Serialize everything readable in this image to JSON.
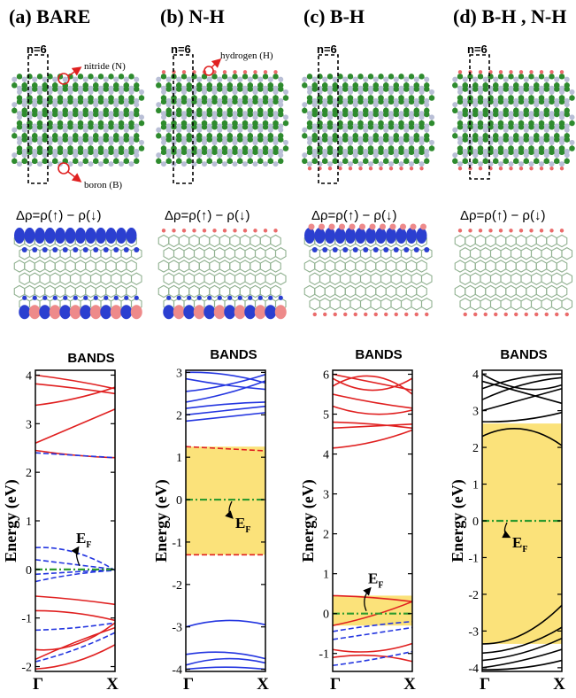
{
  "panels": [
    {
      "title": "(a) BARE",
      "n_label": "n=6"
    },
    {
      "title": "(b) N-H",
      "n_label": "n=6"
    },
    {
      "title": "(c) B-H",
      "n_label": "n=6"
    },
    {
      "title": "(d) B-H , N-H",
      "n_label": "n=6"
    }
  ],
  "annotations": {
    "nitride": "nitride (N)",
    "boron": "boron (B)",
    "hydrogen": "hydrogen (H)"
  },
  "spin_density_formula": "Δρ=ρ(↑) − ρ(↓)",
  "bands_title": "BANDS",
  "ylabel": "Energy (eV)",
  "fermi_label": "E",
  "fermi_sub": "F",
  "colors": {
    "boron": "#2e8b2e",
    "nitrogen": "#b9bfd6",
    "hydrogen": "#ea6b6b",
    "spin_up": "#e02020",
    "spin_down": "#2436e0",
    "gap": "#fbe27a",
    "fermi": "#2e9a2e",
    "density_pos": "#2b3fd0",
    "density_neg": "#ee8a8a"
  },
  "chart_data": [
    {
      "type": "line",
      "panel": "(a) BARE",
      "title": "BANDS",
      "ylabel": "Energy (eV)",
      "xticks": [
        "Γ",
        "X"
      ],
      "ylim": [
        -2.1,
        4.1
      ],
      "yticks": [
        -2,
        -1,
        0,
        1,
        2,
        3,
        4
      ],
      "fermi_level": 0,
      "gap_region": null,
      "series": [
        {
          "spin": "up",
          "style": "solid",
          "color": "red",
          "x": [
            0,
            0.5,
            1
          ],
          "y": [
            4.0,
            3.88,
            3.72
          ]
        },
        {
          "spin": "up",
          "style": "solid",
          "color": "red",
          "x": [
            0,
            0.5,
            1
          ],
          "y": [
            3.82,
            3.73,
            3.62
          ]
        },
        {
          "spin": "up",
          "style": "solid",
          "color": "red",
          "x": [
            0,
            0.5,
            1
          ],
          "y": [
            3.38,
            3.52,
            3.75
          ]
        },
        {
          "spin": "up",
          "style": "solid",
          "color": "red",
          "x": [
            0,
            0.5,
            1
          ],
          "y": [
            2.6,
            2.95,
            3.3
          ]
        },
        {
          "spin": "up",
          "style": "solid",
          "color": "red",
          "x": [
            0,
            0.5,
            1
          ],
          "y": [
            2.45,
            2.35,
            2.3
          ]
        },
        {
          "spin": "down",
          "style": "dashed",
          "color": "blue",
          "x": [
            0,
            0.5,
            1
          ],
          "y": [
            2.4,
            2.35,
            2.3
          ]
        },
        {
          "spin": "down",
          "style": "dashed",
          "color": "blue",
          "x": [
            0,
            0.5,
            1
          ],
          "y": [
            0.45,
            0.35,
            -0.02
          ]
        },
        {
          "spin": "down",
          "style": "dashed",
          "color": "blue",
          "x": [
            0,
            0.5,
            1
          ],
          "y": [
            0.2,
            0.1,
            0.0
          ]
        },
        {
          "spin": "down",
          "style": "dashed",
          "color": "blue",
          "x": [
            0,
            0.5,
            1
          ],
          "y": [
            -0.1,
            -0.05,
            0.0
          ]
        },
        {
          "spin": "down",
          "style": "dashed",
          "color": "blue",
          "x": [
            0,
            0.5,
            1
          ],
          "y": [
            -0.25,
            -0.1,
            -0.02
          ]
        },
        {
          "spin": "up",
          "style": "solid",
          "color": "red",
          "x": [
            0,
            0.5,
            1
          ],
          "y": [
            -0.55,
            -0.62,
            -0.72
          ]
        },
        {
          "spin": "up",
          "style": "solid",
          "color": "red",
          "x": [
            0,
            0.5,
            1
          ],
          "y": [
            -0.85,
            -0.9,
            -1.05
          ]
        },
        {
          "spin": "down",
          "style": "dashed",
          "color": "blue",
          "x": [
            0,
            0.5,
            1
          ],
          "y": [
            -1.25,
            -1.2,
            -1.1
          ]
        },
        {
          "spin": "up",
          "style": "solid",
          "color": "red",
          "x": [
            0,
            0.5,
            1
          ],
          "y": [
            -1.65,
            -1.55,
            -1.1
          ]
        },
        {
          "spin": "up",
          "style": "solid",
          "color": "red",
          "x": [
            0,
            0.5,
            1
          ],
          "y": [
            -1.85,
            -1.5,
            -1.2
          ]
        },
        {
          "spin": "down",
          "style": "dashed",
          "color": "blue",
          "x": [
            0,
            0.5,
            1
          ],
          "y": [
            -1.9,
            -1.65,
            -1.3
          ]
        },
        {
          "spin": "up",
          "style": "solid",
          "color": "red",
          "x": [
            0,
            0.5,
            1
          ],
          "y": [
            -2.05,
            -1.9,
            -1.55
          ]
        }
      ]
    },
    {
      "type": "line",
      "panel": "(b) N-H",
      "title": "BANDS",
      "ylabel": "Energy (eV)",
      "xticks": [
        "Γ",
        "X"
      ],
      "ylim": [
        -4.05,
        3.05
      ],
      "yticks": [
        -4,
        -3,
        -2,
        -1,
        0,
        1,
        2,
        3
      ],
      "fermi_level": 0,
      "gap_region": [
        -1.3,
        1.25
      ],
      "series": [
        {
          "spin": "both",
          "style": "solid",
          "color": "blue",
          "x": [
            0,
            0.5,
            1
          ],
          "y": [
            3.0,
            2.95,
            2.75
          ]
        },
        {
          "spin": "both",
          "style": "solid",
          "color": "blue",
          "x": [
            0,
            0.5,
            1
          ],
          "y": [
            2.85,
            2.7,
            2.6
          ]
        },
        {
          "spin": "both",
          "style": "solid",
          "color": "blue",
          "x": [
            0,
            0.5,
            1
          ],
          "y": [
            2.55,
            2.7,
            2.95
          ]
        },
        {
          "spin": "both",
          "style": "solid",
          "color": "blue",
          "x": [
            0,
            0.5,
            1
          ],
          "y": [
            2.3,
            2.5,
            2.8
          ]
        },
        {
          "spin": "both",
          "style": "solid",
          "color": "blue",
          "x": [
            0,
            0.5,
            1
          ],
          "y": [
            2.15,
            2.25,
            2.3
          ]
        },
        {
          "spin": "both",
          "style": "solid",
          "color": "blue",
          "x": [
            0,
            0.5,
            1
          ],
          "y": [
            2.0,
            2.1,
            2.2
          ]
        },
        {
          "spin": "both",
          "style": "solid",
          "color": "blue",
          "x": [
            0,
            0.5,
            1
          ],
          "y": [
            1.85,
            1.95,
            2.05
          ]
        },
        {
          "spin": "both",
          "style": "dashed",
          "color": "red",
          "x": [
            0,
            0.5,
            1
          ],
          "y": [
            1.25,
            1.2,
            1.15
          ]
        },
        {
          "spin": "both",
          "style": "dashed",
          "color": "red",
          "x": [
            0,
            0.5,
            1
          ],
          "y": [
            -1.3,
            -1.3,
            -1.3
          ]
        },
        {
          "spin": "both",
          "style": "solid",
          "color": "blue",
          "x": [
            0,
            0.5,
            1
          ],
          "y": [
            -3.0,
            -2.85,
            -2.95
          ]
        },
        {
          "spin": "both",
          "style": "solid",
          "color": "blue",
          "x": [
            0,
            0.5,
            1
          ],
          "y": [
            -3.65,
            -3.6,
            -3.75
          ]
        },
        {
          "spin": "both",
          "style": "solid",
          "color": "blue",
          "x": [
            0,
            0.5,
            1
          ],
          "y": [
            -3.9,
            -3.75,
            -3.85
          ]
        },
        {
          "spin": "both",
          "style": "solid",
          "color": "blue",
          "x": [
            0,
            0.5,
            1
          ],
          "y": [
            -4.0,
            -3.95,
            -4.0
          ]
        }
      ]
    },
    {
      "type": "line",
      "panel": "(c) B-H",
      "title": "BANDS",
      "ylabel": "Energy (eV)",
      "xticks": [
        "Γ",
        "X"
      ],
      "ylim": [
        -1.45,
        6.1
      ],
      "yticks": [
        -1,
        0,
        1,
        2,
        3,
        4,
        5,
        6
      ],
      "fermi_level": 0,
      "gap_region": [
        -0.3,
        0.45
      ],
      "series": [
        {
          "spin": "up",
          "style": "solid",
          "color": "red",
          "x": [
            0,
            0.5,
            1
          ],
          "y": [
            6.0,
            5.8,
            5.6
          ]
        },
        {
          "spin": "up",
          "style": "solid",
          "color": "red",
          "x": [
            0,
            0.5,
            1
          ],
          "y": [
            5.9,
            5.6,
            5.9
          ]
        },
        {
          "spin": "up",
          "style": "solid",
          "color": "red",
          "x": [
            0,
            0.5,
            1
          ],
          "y": [
            5.7,
            5.95,
            5.5
          ]
        },
        {
          "spin": "up",
          "style": "solid",
          "color": "red",
          "x": [
            0,
            0.5,
            1
          ],
          "y": [
            5.5,
            5.3,
            5.15
          ]
        },
        {
          "spin": "up",
          "style": "solid",
          "color": "red",
          "x": [
            0,
            0.5,
            1
          ],
          "y": [
            5.2,
            5.0,
            5.1
          ]
        },
        {
          "spin": "up",
          "style": "solid",
          "color": "red",
          "x": [
            0,
            0.5,
            1
          ],
          "y": [
            4.8,
            4.75,
            4.65
          ]
        },
        {
          "spin": "up",
          "style": "solid",
          "color": "red",
          "x": [
            0,
            0.5,
            1
          ],
          "y": [
            4.65,
            4.7,
            4.75
          ]
        },
        {
          "spin": "up",
          "style": "solid",
          "color": "red",
          "x": [
            0,
            0.5,
            1
          ],
          "y": [
            4.15,
            4.3,
            4.6
          ]
        },
        {
          "spin": "up",
          "style": "solid",
          "color": "red",
          "x": [
            0,
            0.5,
            1
          ],
          "y": [
            0.45,
            0.4,
            0.3
          ]
        },
        {
          "spin": "up",
          "style": "solid",
          "color": "red",
          "x": [
            0,
            0.5,
            1
          ],
          "y": [
            -0.3,
            -0.05,
            0.3
          ]
        },
        {
          "spin": "down",
          "style": "dashed",
          "color": "blue",
          "x": [
            0,
            0.5,
            1
          ],
          "y": [
            -0.45,
            -0.3,
            -0.2
          ]
        },
        {
          "spin": "down",
          "style": "dashed",
          "color": "blue",
          "x": [
            0,
            0.5,
            1
          ],
          "y": [
            -0.65,
            -0.5,
            -0.35
          ]
        },
        {
          "spin": "up",
          "style": "solid",
          "color": "red",
          "x": [
            0,
            0.5,
            1
          ],
          "y": [
            -0.9,
            -0.95,
            -0.75
          ]
        },
        {
          "spin": "up",
          "style": "solid",
          "color": "red",
          "x": [
            0,
            0.5,
            1
          ],
          "y": [
            -1.1,
            -1.05,
            -1.2
          ]
        },
        {
          "spin": "down",
          "style": "dashed",
          "color": "blue",
          "x": [
            0,
            0.5,
            1
          ],
          "y": [
            -1.3,
            -1.15,
            -0.95
          ]
        }
      ]
    },
    {
      "type": "line",
      "panel": "(d) B-H , N-H",
      "title": "BANDS",
      "ylabel": "Energy (eV)",
      "xticks": [
        "Γ",
        "X"
      ],
      "ylim": [
        -4.1,
        4.1
      ],
      "yticks": [
        -4,
        -3,
        -2,
        -1,
        0,
        1,
        2,
        3,
        4
      ],
      "fermi_level": 0,
      "gap_region": [
        -3.35,
        2.65
      ],
      "series": [
        {
          "spin": "both",
          "style": "solid",
          "color": "black",
          "x": [
            0,
            0.5,
            1
          ],
          "y": [
            4.0,
            3.6,
            3.7
          ]
        },
        {
          "spin": "both",
          "style": "solid",
          "color": "black",
          "x": [
            0,
            0.5,
            1
          ],
          "y": [
            3.8,
            3.5,
            3.2
          ]
        },
        {
          "spin": "both",
          "style": "solid",
          "color": "black",
          "x": [
            0,
            0.5,
            1
          ],
          "y": [
            3.6,
            3.9,
            4.0
          ]
        },
        {
          "spin": "both",
          "style": "solid",
          "color": "black",
          "x": [
            0,
            0.5,
            1
          ],
          "y": [
            3.3,
            3.7,
            3.9
          ]
        },
        {
          "spin": "both",
          "style": "solid",
          "color": "black",
          "x": [
            0,
            0.5,
            1
          ],
          "y": [
            3.0,
            3.3,
            3.6
          ]
        },
        {
          "spin": "both",
          "style": "solid",
          "color": "black",
          "x": [
            0,
            0.5,
            1
          ],
          "y": [
            2.7,
            2.75,
            2.95
          ]
        },
        {
          "spin": "both",
          "style": "solid",
          "color": "black",
          "x": [
            0,
            0.5,
            1
          ],
          "y": [
            2.3,
            2.5,
            2.05
          ]
        },
        {
          "spin": "both",
          "style": "solid",
          "color": "black",
          "x": [
            0,
            0.5,
            1
          ],
          "y": [
            -3.35,
            -3.1,
            -2.3
          ]
        },
        {
          "spin": "both",
          "style": "solid",
          "color": "black",
          "x": [
            0,
            0.5,
            1
          ],
          "y": [
            -3.6,
            -3.4,
            -2.9
          ]
        },
        {
          "spin": "both",
          "style": "solid",
          "color": "black",
          "x": [
            0,
            0.5,
            1
          ],
          "y": [
            -3.8,
            -3.6,
            -3.2
          ]
        },
        {
          "spin": "both",
          "style": "solid",
          "color": "black",
          "x": [
            0,
            0.5,
            1
          ],
          "y": [
            -4.0,
            -3.8,
            -3.5
          ]
        },
        {
          "spin": "both",
          "style": "solid",
          "color": "black",
          "x": [
            0,
            0.5,
            1
          ],
          "y": [
            -4.05,
            -4.0,
            -3.8
          ]
        }
      ]
    }
  ]
}
